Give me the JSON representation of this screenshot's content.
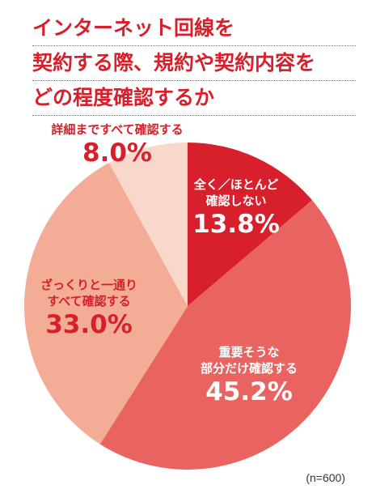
{
  "title_lines": [
    "インターネット回線を",
    "契約する際、規約や契約内容を",
    "どの程度確認するか"
  ],
  "note": "(n=600)",
  "chart_data": {
    "type": "pie",
    "start_angle_deg": 0,
    "direction": "clockwise",
    "slices": [
      {
        "label_lines": [
          "全く／ほとんど",
          "確認しない"
        ],
        "value": 13.8,
        "value_text": "13.8%",
        "color": "#d7202b",
        "text_color": "#ffffff"
      },
      {
        "label_lines": [
          "重要そうな",
          "部分だけ確認する"
        ],
        "value": 45.2,
        "value_text": "45.2%",
        "color": "#e96460",
        "text_color": "#ffffff"
      },
      {
        "label_lines": [
          "ざっくりと一通り",
          "すべて確認する"
        ],
        "value": 33.0,
        "value_text": "33.0%",
        "color": "#f3ad97",
        "text_color": "#d7202b"
      },
      {
        "label_lines": [
          "詳細まですべて確認する"
        ],
        "value": 8.0,
        "value_text": "8.0%",
        "color": "#f9d8cc",
        "text_color": "#d7202b"
      }
    ]
  }
}
